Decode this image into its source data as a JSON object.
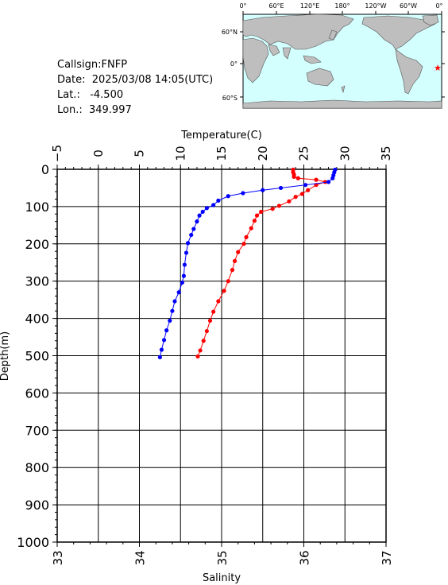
{
  "info": {
    "callsign": "Callsign:FNFP",
    "date": "Date:  2025/03/08 14:05(UTC)",
    "lat": "Lat.:   -4.500",
    "lon": "Lon.:  349.997"
  },
  "map": {
    "lon_labels": [
      "0°",
      "60°E",
      "120°E",
      "180°",
      "120°W",
      "60°W",
      "0°"
    ],
    "lat_labels": [
      "60°N",
      "0°",
      "60°S"
    ],
    "ocean_color": "#d3ffff",
    "land_color": "#bebebe",
    "marker": "red-star",
    "marker_color": "#ff0000"
  },
  "chart_data": {
    "type": "line",
    "title": "",
    "temperature_axis": {
      "label": "Temperature(C)",
      "range": [
        -5,
        35
      ],
      "ticks": [
        "−5",
        "0",
        "5",
        "10",
        "15",
        "20",
        "25",
        "30",
        "35"
      ]
    },
    "salinity_axis": {
      "label": "Salinity",
      "range": [
        33,
        37
      ],
      "ticks": [
        "33",
        "34",
        "35",
        "36",
        "37"
      ]
    },
    "depth_axis": {
      "label": "Depth(m)",
      "range": [
        0,
        1000
      ],
      "inverted": true,
      "ticks": [
        "0",
        "100",
        "200",
        "300",
        "400",
        "500",
        "600",
        "700",
        "800",
        "900",
        "1000"
      ]
    },
    "grid": true,
    "series": [
      {
        "variable": "temperature",
        "color": "#ff0000",
        "points": [
          [
            23.7,
            1
          ],
          [
            23.7,
            8
          ],
          [
            23.8,
            14
          ],
          [
            23.8,
            20
          ],
          [
            24.3,
            24
          ],
          [
            26.5,
            28
          ],
          [
            27.6,
            34
          ],
          [
            26.5,
            42
          ],
          [
            25.5,
            56
          ],
          [
            24.8,
            66
          ],
          [
            24.0,
            74
          ],
          [
            23.2,
            86
          ],
          [
            22.0,
            98
          ],
          [
            21.2,
            106
          ],
          [
            19.8,
            114
          ],
          [
            19.3,
            124
          ],
          [
            19.0,
            138
          ],
          [
            18.6,
            158
          ],
          [
            18.0,
            182
          ],
          [
            17.7,
            200
          ],
          [
            17.0,
            222
          ],
          [
            16.6,
            246
          ],
          [
            16.3,
            270
          ],
          [
            15.8,
            300
          ],
          [
            15.3,
            326
          ],
          [
            14.6,
            354
          ],
          [
            14.0,
            382
          ],
          [
            13.6,
            406
          ],
          [
            13.2,
            434
          ],
          [
            12.8,
            460
          ],
          [
            12.4,
            486
          ],
          [
            12.1,
            502
          ]
        ]
      },
      {
        "variable": "salinity",
        "color": "#0000ff",
        "points": [
          [
            36.38,
            1
          ],
          [
            36.37,
            8
          ],
          [
            36.36,
            16
          ],
          [
            36.35,
            24
          ],
          [
            36.3,
            34
          ],
          [
            36.02,
            42
          ],
          [
            35.72,
            50
          ],
          [
            35.5,
            56
          ],
          [
            35.26,
            64
          ],
          [
            35.08,
            72
          ],
          [
            34.96,
            84
          ],
          [
            34.9,
            96
          ],
          [
            34.82,
            104
          ],
          [
            34.77,
            114
          ],
          [
            34.73,
            124
          ],
          [
            34.7,
            140
          ],
          [
            34.66,
            160
          ],
          [
            34.63,
            176
          ],
          [
            34.59,
            198
          ],
          [
            34.57,
            224
          ],
          [
            34.55,
            256
          ],
          [
            34.54,
            286
          ],
          [
            34.52,
            304
          ],
          [
            34.48,
            330
          ],
          [
            34.43,
            354
          ],
          [
            34.4,
            380
          ],
          [
            34.37,
            406
          ],
          [
            34.33,
            432
          ],
          [
            34.3,
            458
          ],
          [
            34.27,
            484
          ],
          [
            34.25,
            504
          ]
        ]
      }
    ]
  }
}
